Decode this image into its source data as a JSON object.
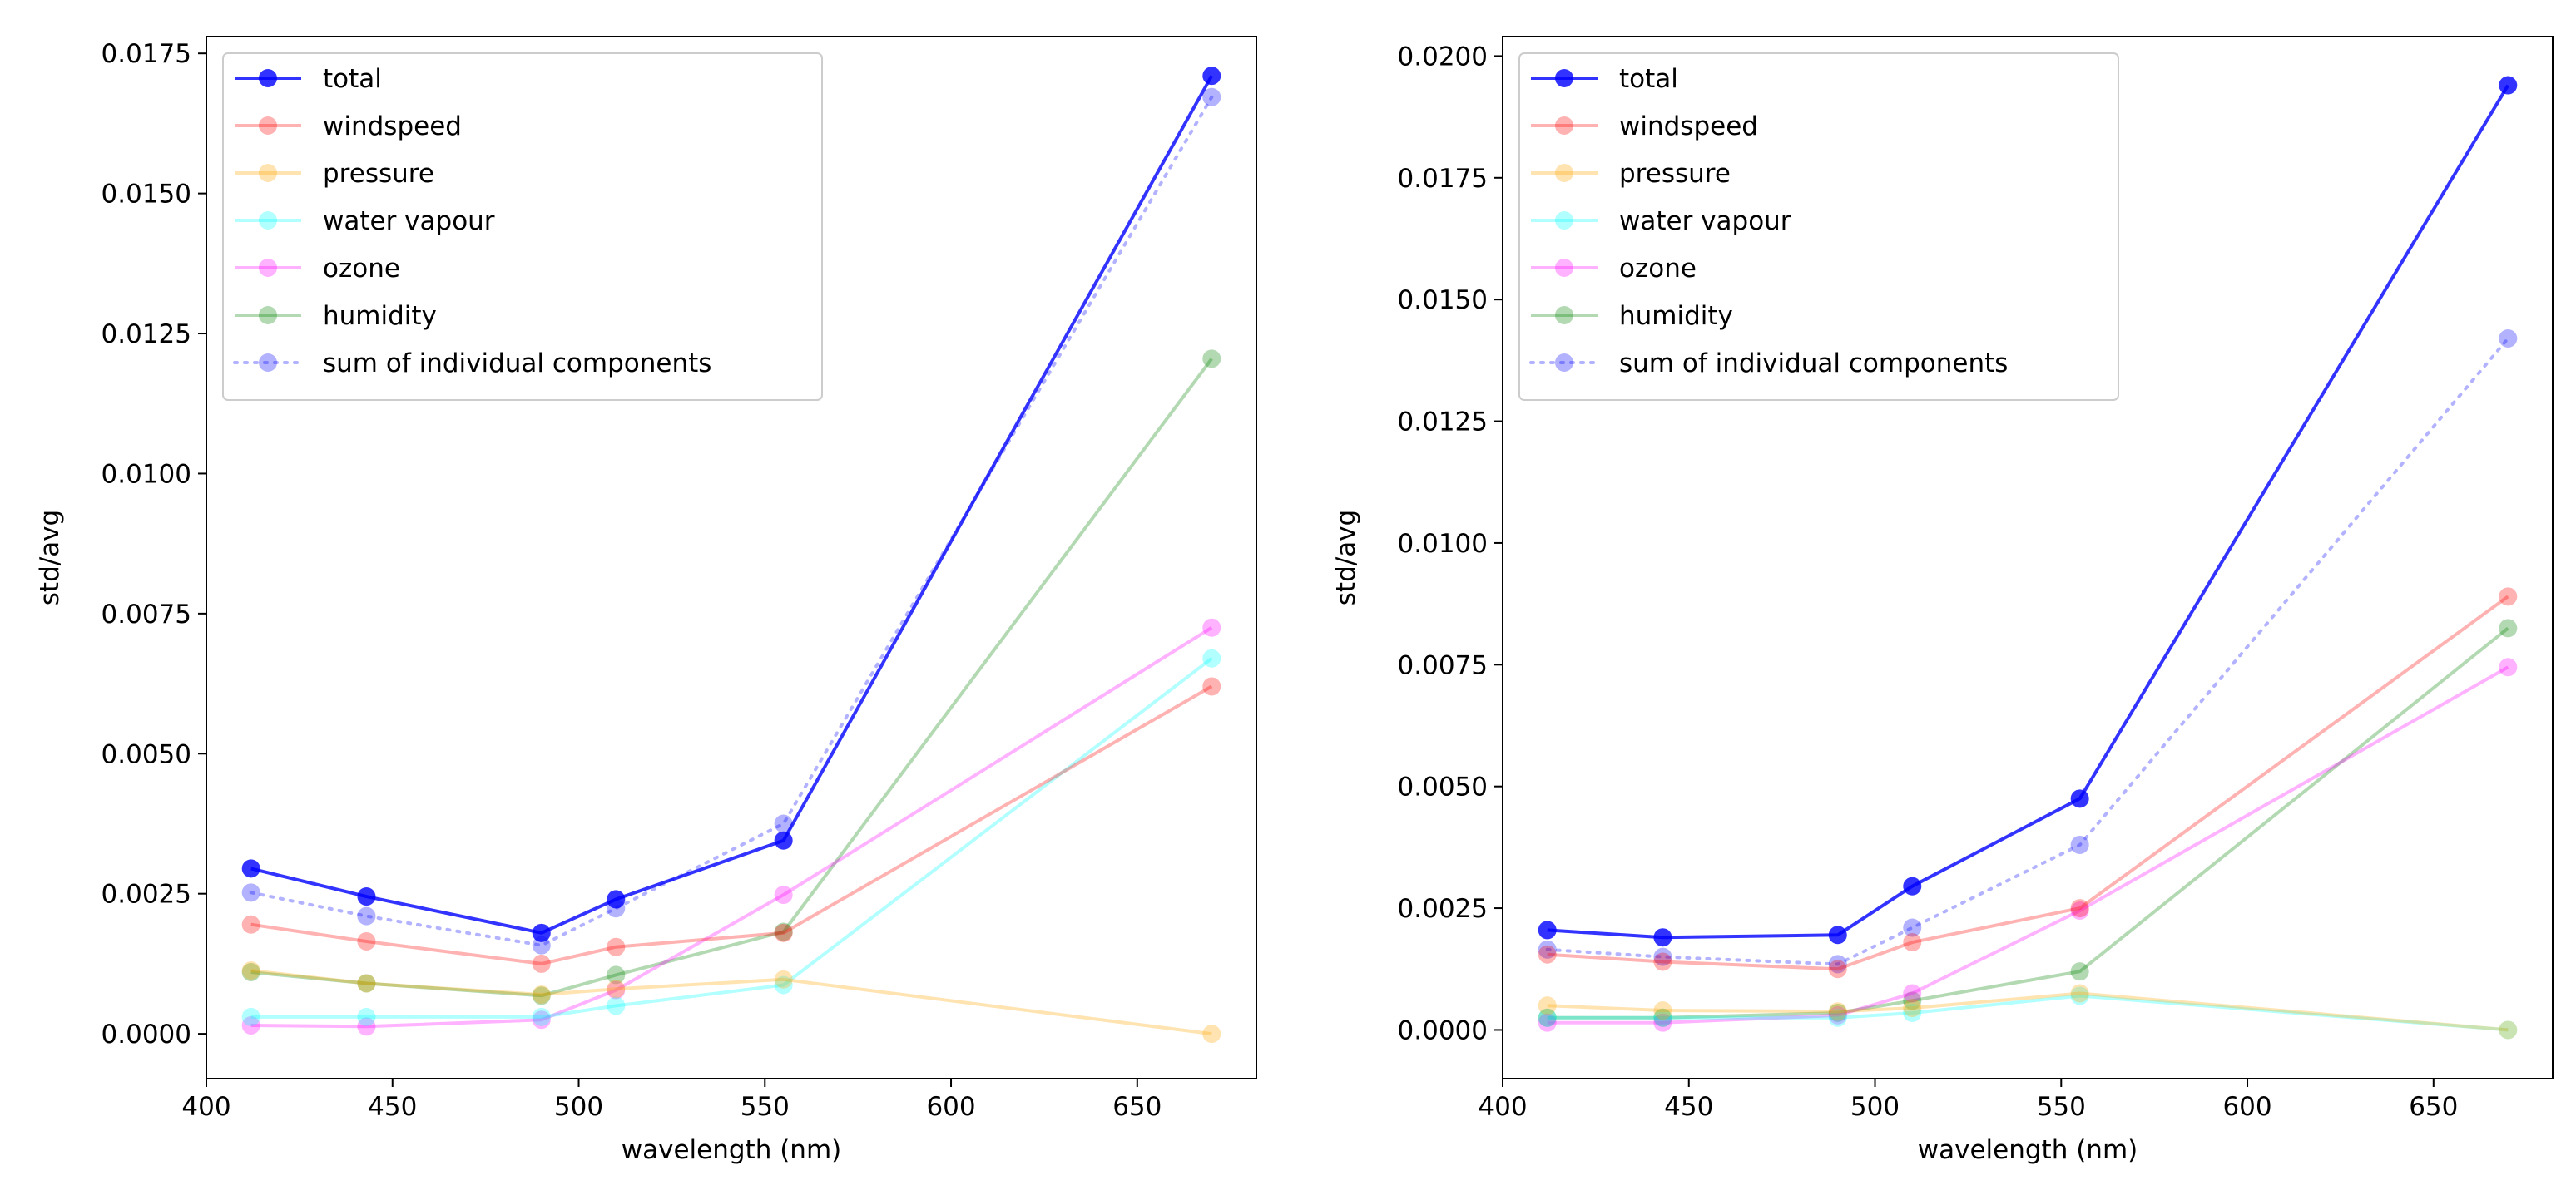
{
  "chart_data": [
    {
      "type": "line",
      "title": "",
      "xlabel": "wavelength (nm)",
      "ylabel": "std/avg",
      "xlim": [
        400,
        682
      ],
      "ylim": [
        -0.0008,
        0.0178
      ],
      "xticks": [
        400,
        450,
        500,
        550,
        600,
        650
      ],
      "yticks": [
        0.0,
        0.0025,
        0.005,
        0.0075,
        0.01,
        0.0125,
        0.015,
        0.0175
      ],
      "ytick_labels": [
        "0.0000",
        "0.0025",
        "0.0050",
        "0.0075",
        "0.0100",
        "0.0125",
        "0.0150",
        "0.0175"
      ],
      "legend_position": "top-left",
      "x": [
        412,
        443,
        490,
        510,
        555,
        670
      ],
      "series": [
        {
          "name": "total",
          "color": "#0000ff",
          "alpha": 0.8,
          "style": "solid",
          "values": [
            0.00295,
            0.00245,
            0.0018,
            0.0024,
            0.00345,
            0.0171
          ]
        },
        {
          "name": "windspeed",
          "color": "#ff0000",
          "alpha": 0.3,
          "style": "solid",
          "values": [
            0.00195,
            0.00165,
            0.00125,
            0.00155,
            0.0018,
            0.0062
          ]
        },
        {
          "name": "pressure",
          "color": "#ffa500",
          "alpha": 0.3,
          "style": "solid",
          "values": [
            0.00113,
            0.0009,
            0.0007,
            0.0008,
            0.00097,
            0.0
          ]
        },
        {
          "name": "water vapour",
          "color": "#00ffff",
          "alpha": 0.3,
          "style": "solid",
          "values": [
            0.0003,
            0.0003,
            0.0003,
            0.0005,
            0.00087,
            0.0067
          ]
        },
        {
          "name": "ozone",
          "color": "#ff00ff",
          "alpha": 0.3,
          "style": "solid",
          "values": [
            0.00015,
            0.00013,
            0.00025,
            0.00078,
            0.00248,
            0.00725
          ]
        },
        {
          "name": "humidity",
          "color": "#008000",
          "alpha": 0.3,
          "style": "solid",
          "values": [
            0.0011,
            0.0009,
            0.00068,
            0.00105,
            0.00182,
            0.01205
          ]
        },
        {
          "name": "sum of individual components",
          "color": "#0000ff",
          "alpha": 0.3,
          "style": "dotted",
          "values": [
            0.00252,
            0.0021,
            0.00158,
            0.00224,
            0.00375,
            0.01672
          ]
        }
      ]
    },
    {
      "type": "line",
      "title": "",
      "xlabel": "wavelength (nm)",
      "ylabel": "std/avg",
      "xlim": [
        400,
        682
      ],
      "ylim": [
        -0.001,
        0.0204
      ],
      "xticks": [
        400,
        450,
        500,
        550,
        600,
        650
      ],
      "yticks": [
        0.0,
        0.0025,
        0.005,
        0.0075,
        0.01,
        0.0125,
        0.015,
        0.0175,
        0.02
      ],
      "ytick_labels": [
        "0.0000",
        "0.0025",
        "0.0050",
        "0.0075",
        "0.0100",
        "0.0125",
        "0.0150",
        "0.0175",
        "0.0200"
      ],
      "legend_position": "top-left",
      "x": [
        412,
        443,
        490,
        510,
        555,
        670
      ],
      "series": [
        {
          "name": "total",
          "color": "#0000ff",
          "alpha": 0.8,
          "style": "solid",
          "values": [
            0.00205,
            0.0019,
            0.00195,
            0.00295,
            0.00475,
            0.0194
          ]
        },
        {
          "name": "windspeed",
          "color": "#ff0000",
          "alpha": 0.3,
          "style": "solid",
          "values": [
            0.00155,
            0.0014,
            0.00125,
            0.0018,
            0.0025,
            0.0089
          ]
        },
        {
          "name": "pressure",
          "color": "#ffa500",
          "alpha": 0.3,
          "style": "solid",
          "values": [
            0.0005,
            0.0004,
            0.00038,
            0.00045,
            0.00075,
            0.0
          ]
        },
        {
          "name": "water vapour",
          "color": "#00ffff",
          "alpha": 0.3,
          "style": "solid",
          "values": [
            0.00025,
            0.00025,
            0.00025,
            0.00035,
            0.0007,
            0.0
          ]
        },
        {
          "name": "ozone",
          "color": "#ff00ff",
          "alpha": 0.3,
          "style": "solid",
          "values": [
            0.00015,
            0.00015,
            0.0003,
            0.00075,
            0.00245,
            0.00745
          ]
        },
        {
          "name": "humidity",
          "color": "#008000",
          "alpha": 0.3,
          "style": "solid",
          "values": [
            0.00025,
            0.00025,
            0.00035,
            0.0006,
            0.0012,
            0.00825
          ]
        },
        {
          "name": "sum of individual components",
          "color": "#0000ff",
          "alpha": 0.3,
          "style": "dotted",
          "values": [
            0.00165,
            0.0015,
            0.00135,
            0.0021,
            0.0038,
            0.0142
          ]
        }
      ]
    }
  ]
}
